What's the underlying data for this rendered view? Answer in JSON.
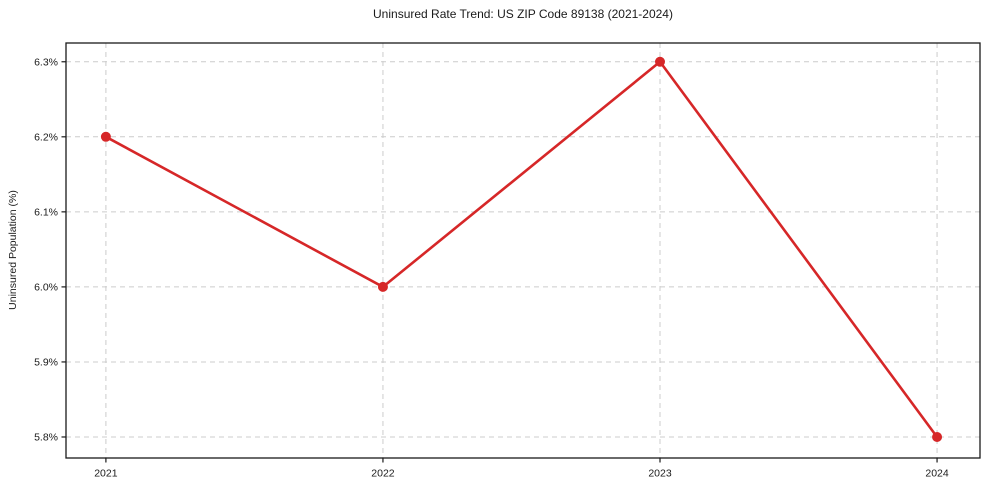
{
  "chart_data": {
    "type": "line",
    "title": "Uninsured Rate Trend: US ZIP Code 89138 (2021-2024)",
    "xlabel": "",
    "ylabel": "Uninsured Population (%)",
    "x": [
      2021,
      2022,
      2023,
      2024
    ],
    "x_tick_labels": [
      "2021",
      "2022",
      "2023",
      "2024"
    ],
    "values": [
      6.2,
      6.0,
      6.3,
      5.8
    ],
    "y_ticks": [
      5.8,
      5.9,
      6.0,
      6.1,
      6.2,
      6.3
    ],
    "y_tick_labels": [
      "5.8%",
      "5.9%",
      "6.0%",
      "6.1%",
      "6.2%",
      "6.3%"
    ],
    "xlim": [
      2020.856,
      2024.155
    ],
    "ylim": [
      5.772,
      6.325
    ],
    "grid": {
      "visible": true,
      "style": "dashed",
      "color": "#cccccc"
    },
    "legend": {
      "visible": false
    },
    "line_color": "#d62728",
    "marker": "circle",
    "marker_radius": 5,
    "line_width": 2.6,
    "axis_color": "#1a1a1a",
    "text_color": "#1a1a1a",
    "background_color": "#ffffff"
  }
}
